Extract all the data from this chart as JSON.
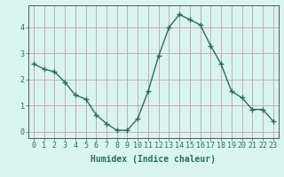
{
  "x": [
    0,
    1,
    2,
    3,
    4,
    5,
    6,
    7,
    8,
    9,
    10,
    11,
    12,
    13,
    14,
    15,
    16,
    17,
    18,
    19,
    20,
    21,
    22,
    23
  ],
  "y": [
    2.6,
    2.4,
    2.3,
    1.9,
    1.4,
    1.25,
    0.65,
    0.3,
    0.05,
    0.05,
    0.5,
    1.55,
    2.9,
    4.0,
    4.5,
    4.3,
    4.1,
    3.3,
    2.6,
    1.55,
    1.3,
    0.85,
    0.85,
    0.4
  ],
  "line_color": "#2d6b5e",
  "marker": "+",
  "marker_size": 4,
  "bg_color": "#d8f5f0",
  "grid_color": "#c8a0a0",
  "xlabel": "Humidex (Indice chaleur)",
  "xlabel_fontsize": 7,
  "yticks": [
    0,
    1,
    2,
    3,
    4
  ],
  "xticks": [
    0,
    1,
    2,
    3,
    4,
    5,
    6,
    7,
    8,
    9,
    10,
    11,
    12,
    13,
    14,
    15,
    16,
    17,
    18,
    19,
    20,
    21,
    22,
    23
  ],
  "ylim": [
    -0.25,
    4.85
  ],
  "xlim": [
    -0.5,
    23.5
  ],
  "tick_fontsize": 6,
  "line_width": 1.0
}
